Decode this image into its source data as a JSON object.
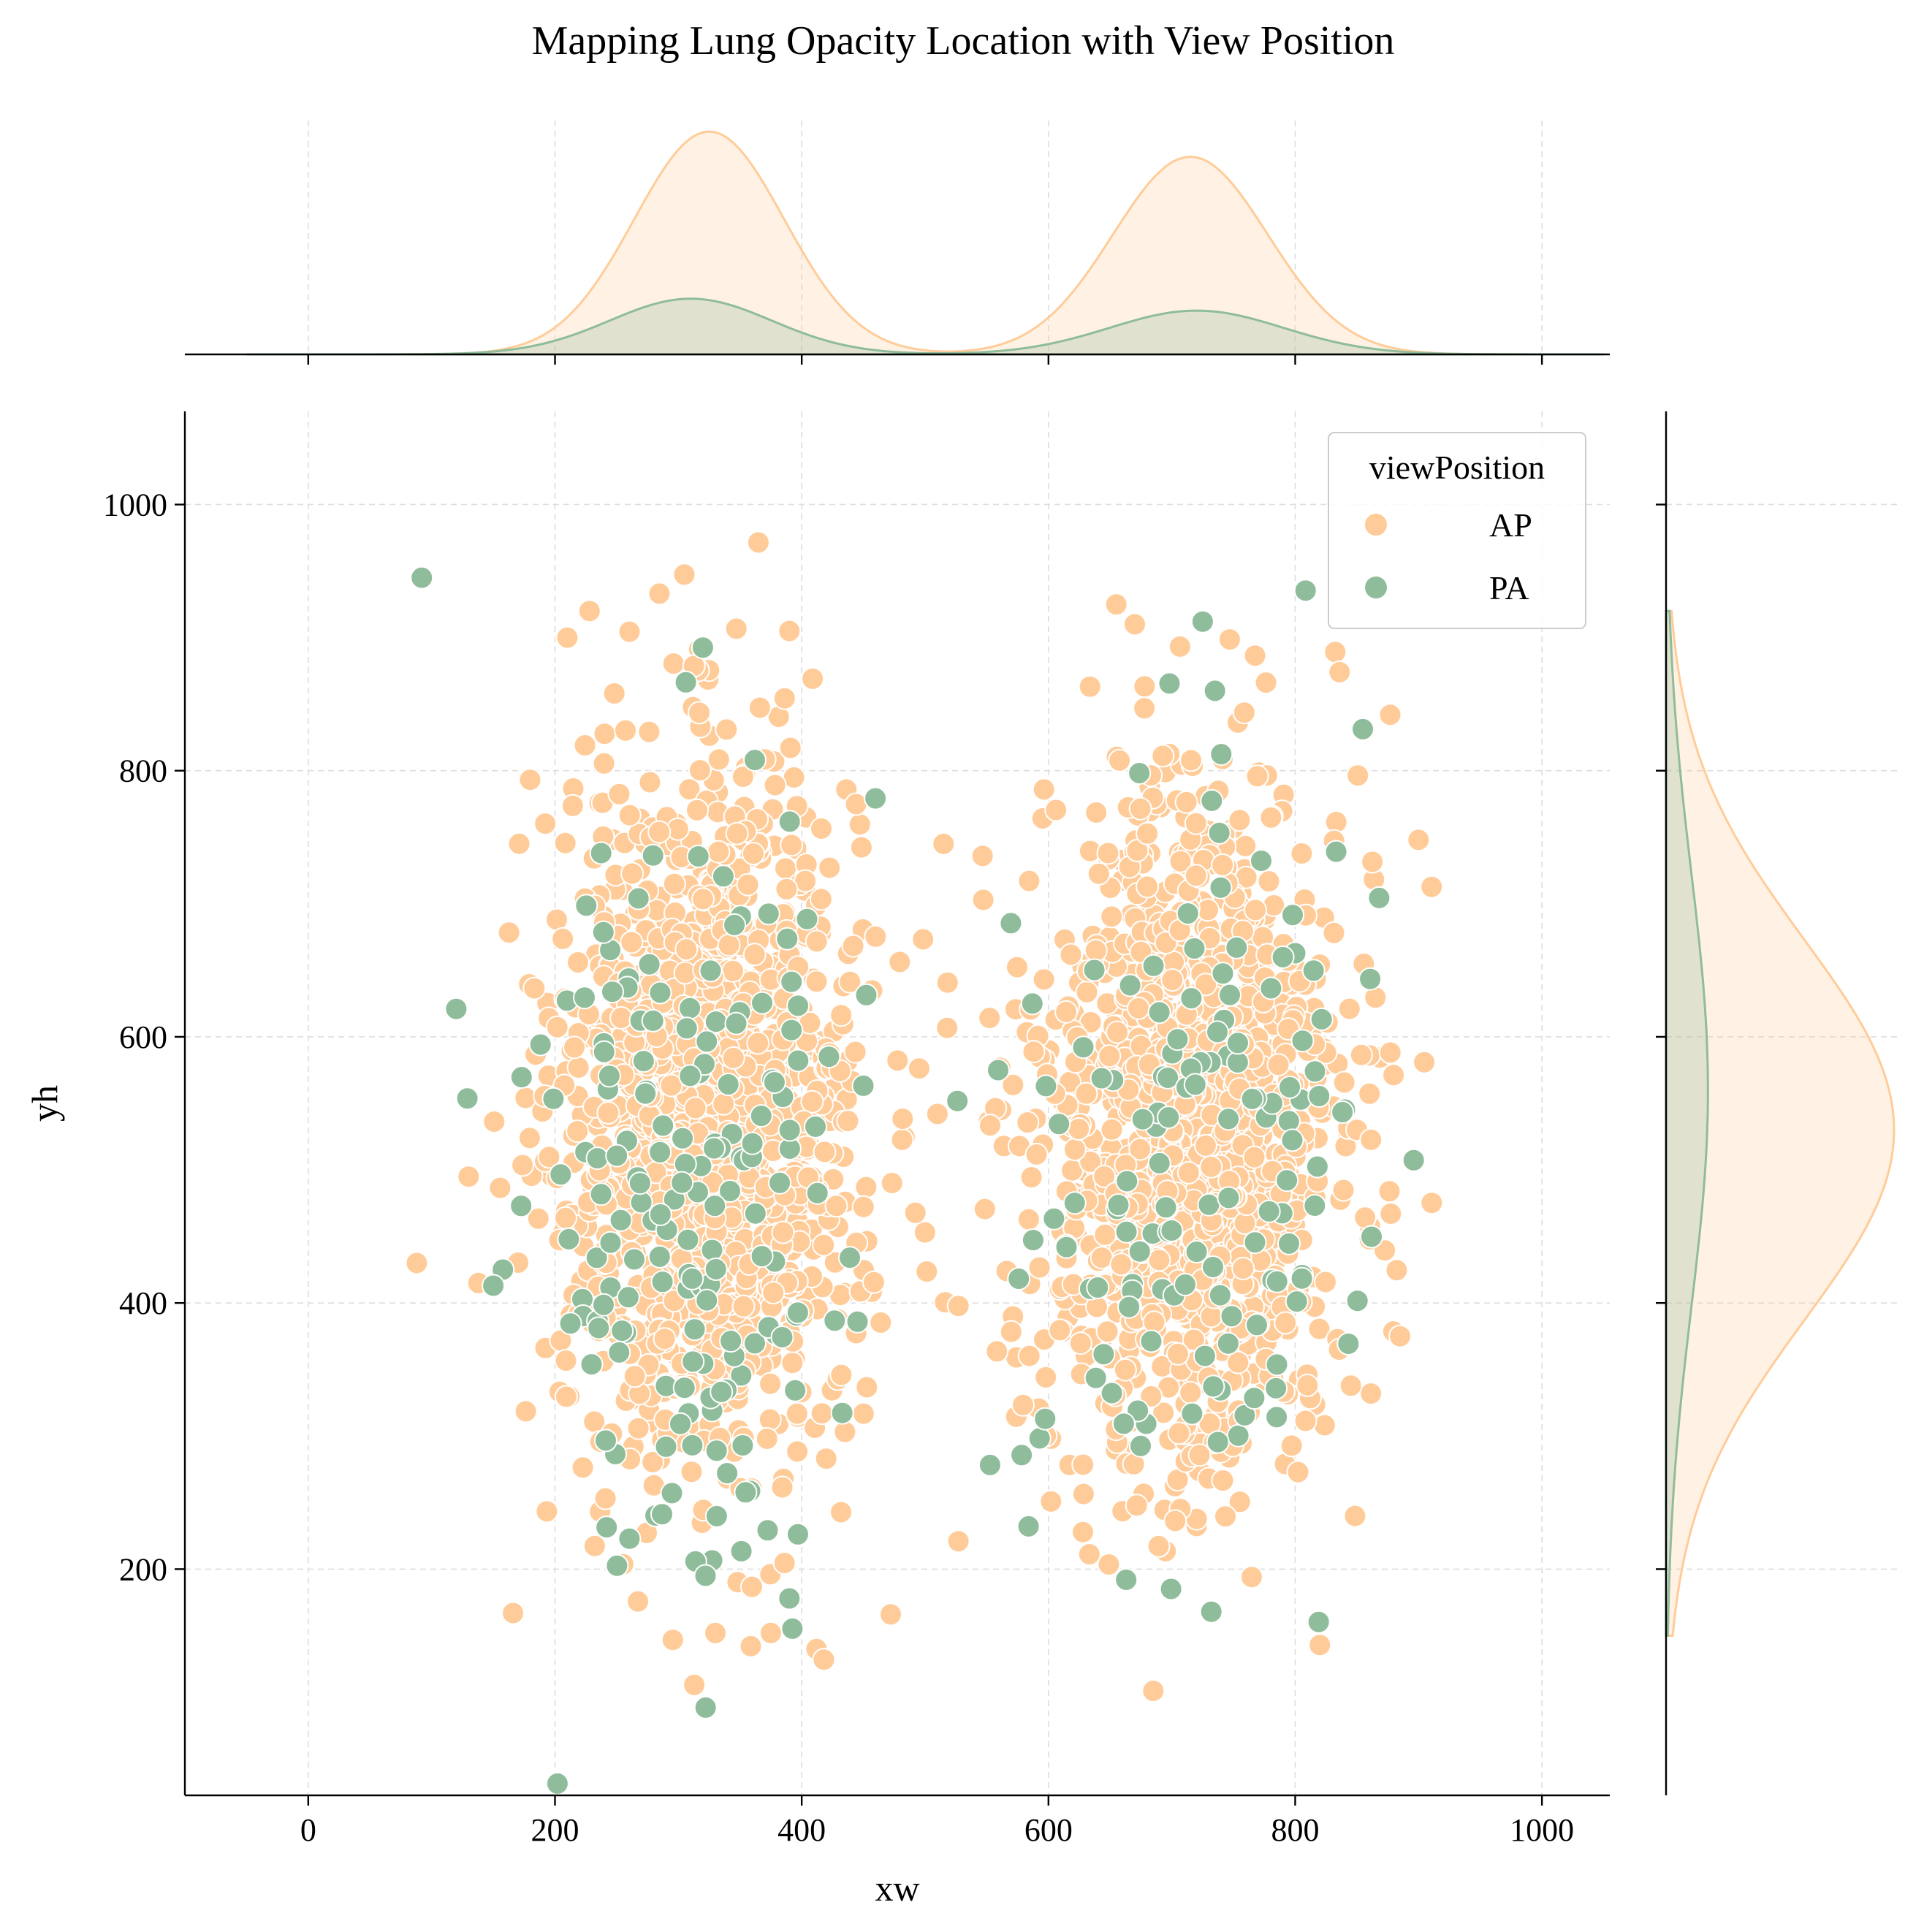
{
  "chart_data": {
    "type": "scatter",
    "title": "Mapping Lung Opacity Location with View Position",
    "xlabel": "xw",
    "ylabel": "yh",
    "xlim": [
      -100,
      1055
    ],
    "ylim": [
      30,
      1070
    ],
    "xticks": [
      0,
      200,
      400,
      600,
      800,
      1000
    ],
    "yticks": [
      200,
      400,
      600,
      800,
      1000
    ],
    "grid": true,
    "legend": {
      "title": "viewPosition",
      "placement": "top-right"
    },
    "marginals": {
      "top": "kde of xw",
      "right": "kde of yh"
    },
    "series": [
      {
        "name": "AP",
        "color": "#FFCC99",
        "count": 2700,
        "clusters": [
          {
            "cx": 325,
            "cy": 540,
            "sx": 60,
            "sy": 130,
            "share": 0.53
          },
          {
            "cx": 715,
            "cy": 530,
            "sx": 62,
            "sy": 130,
            "share": 0.47
          }
        ],
        "kde_x_peaks": [
          {
            "at": 325,
            "density": 1.0
          },
          {
            "at": 715,
            "density": 0.91
          },
          {
            "valley_at": 520,
            "density": 0.06
          }
        ],
        "kde_y_peak": {
          "at": 530
        },
        "extra_points": [
          [
            228,
            920
          ],
          [
            390,
            905
          ],
          [
            655,
            925
          ],
          [
            670,
            910
          ],
          [
            166,
            167
          ],
          [
            330,
            152
          ],
          [
            375,
            152
          ],
          [
            412,
            140
          ],
          [
            418,
            132
          ],
          [
            820,
            143
          ],
          [
            900,
            748
          ],
          [
            885,
            375
          ],
          [
            515,
            745
          ],
          [
            527,
            221
          ],
          [
            88,
            430
          ],
          [
            138,
            415
          ],
          [
            130,
            495
          ],
          [
            210,
            900
          ],
          [
            836,
            874
          ],
          [
            877,
            842
          ]
        ]
      },
      {
        "name": "PA",
        "color": "#8FBC9A",
        "count": 320,
        "clusters": [
          {
            "cx": 310,
            "cy": 480,
            "sx": 65,
            "sy": 150,
            "share": 0.56
          },
          {
            "cx": 720,
            "cy": 500,
            "sx": 70,
            "sy": 145,
            "share": 0.44
          }
        ],
        "kde_x_peaks": [
          {
            "at": 312,
            "density": 0.25
          },
          {
            "at": 722,
            "density": 0.19
          }
        ],
        "kde_y_peak": {
          "at": 560
        },
        "extra_points": [
          [
            92,
            945
          ],
          [
            120,
            621
          ],
          [
            150,
            413
          ],
          [
            725,
            912
          ],
          [
            735,
            860
          ],
          [
            732,
            168
          ],
          [
            390,
            178
          ],
          [
            322,
            195
          ],
          [
            663,
            192
          ],
          [
            362,
            808
          ]
        ]
      }
    ]
  }
}
